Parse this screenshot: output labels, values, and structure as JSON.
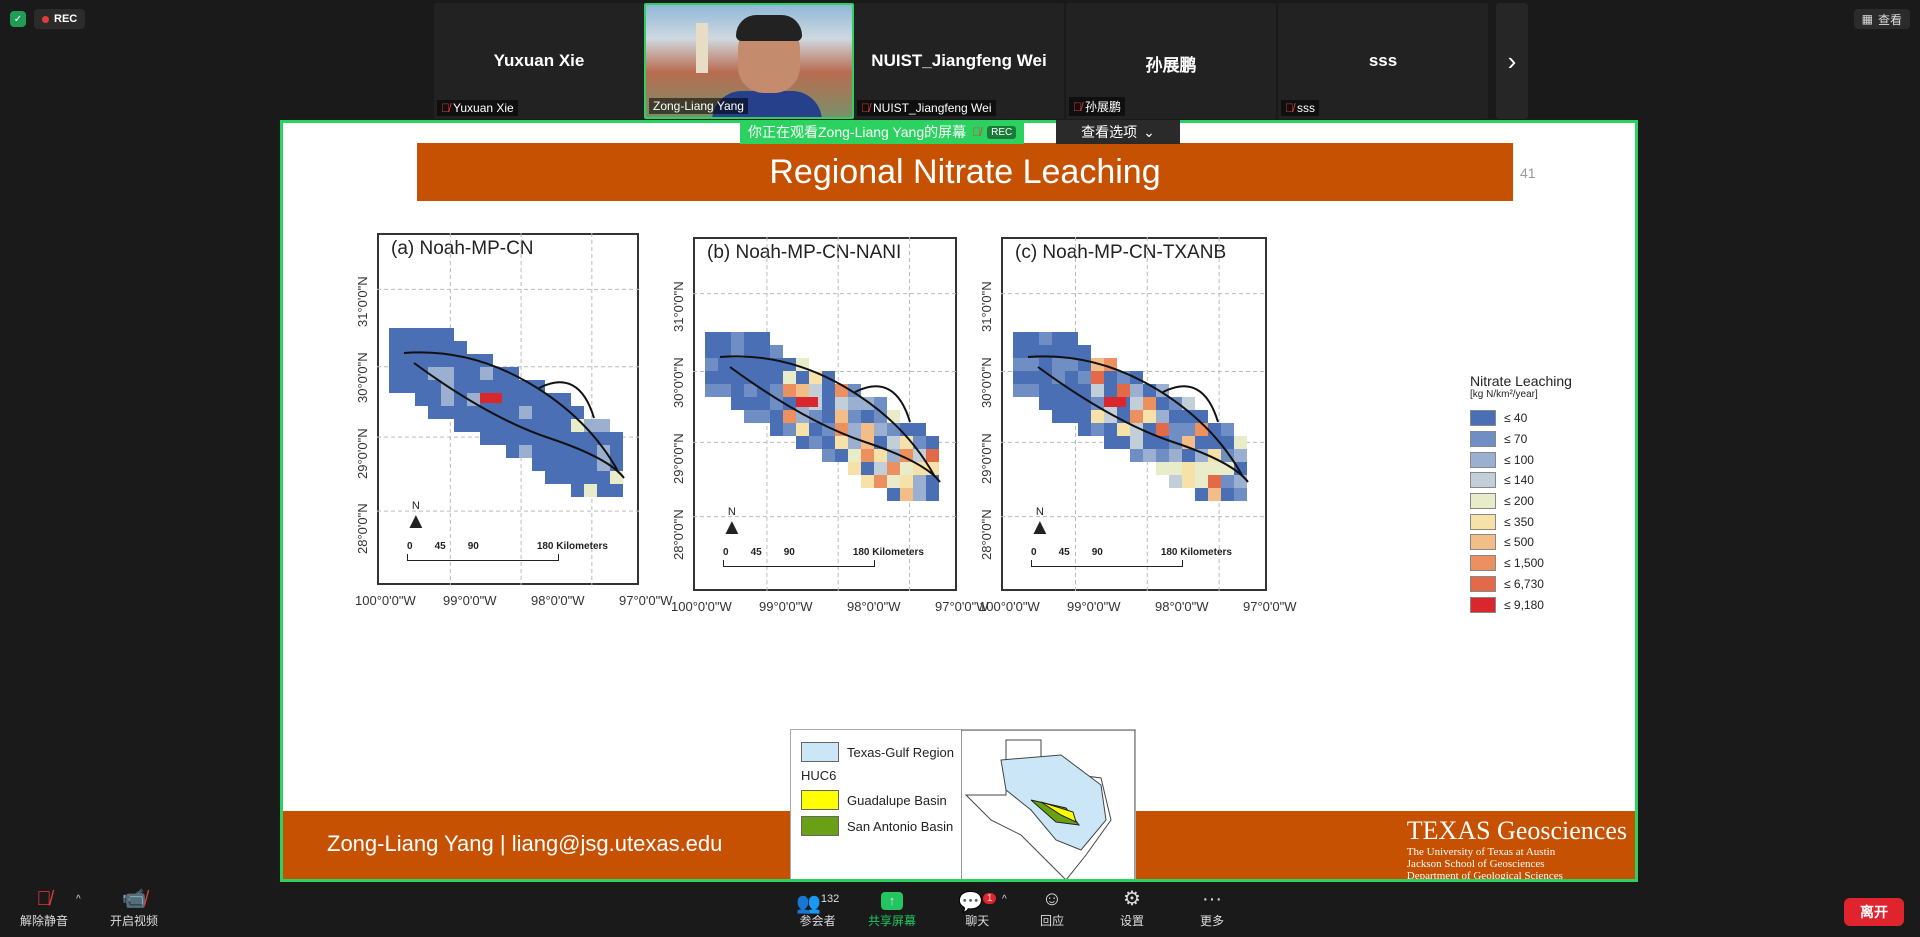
{
  "top": {
    "rec_label": "REC",
    "view_label": "查看",
    "tiles": [
      {
        "name": "Yuxuan Xie",
        "label": "Yuxuan Xie"
      },
      {
        "name": "",
        "label": "Zong-Liang Yang"
      },
      {
        "name": "NUIST_Jiangfeng Wei",
        "label": "NUIST_Jiangfeng Wei"
      },
      {
        "name": "孙展鹏",
        "label": "孙展鹏"
      },
      {
        "name": "sss",
        "label": "sss"
      }
    ]
  },
  "share_banner": {
    "text": "你正在观看Zong-Liang Yang的屏幕",
    "rec": "REC",
    "options": "查看选项"
  },
  "slide": {
    "title": "Regional Nitrate Leaching",
    "page": "41",
    "maps": [
      {
        "title": "(a) Noah-MP-CN"
      },
      {
        "title": "(b) Noah-MP-CN-NANI"
      },
      {
        "title": "(c) Noah-MP-CN-TXANB"
      }
    ],
    "lat_labels": [
      "31°0'0\"N",
      "30°0'0\"N",
      "29°0'0\"N",
      "28°0'0\"N"
    ],
    "lon_labels": [
      "100°0'0\"W",
      "99°0'0\"W",
      "98°0'0\"W",
      "97°0'0\"W"
    ],
    "north": "N",
    "scale_labels": [
      "0",
      "45",
      "90",
      "180 Kilometers"
    ],
    "legend": {
      "title": "Nitrate Leaching",
      "unit": "[kg N/km²/year]",
      "items": [
        {
          "label": "≤ 40",
          "color": "#4a6fb5"
        },
        {
          "label": "≤ 70",
          "color": "#6f8fc4"
        },
        {
          "label": "≤ 100",
          "color": "#9bb0d0"
        },
        {
          "label": "≤ 140",
          "color": "#c2cfd8"
        },
        {
          "label": "≤ 200",
          "color": "#e8ecc8"
        },
        {
          "label": "≤ 350",
          "color": "#f6e2a8"
        },
        {
          "label": "≤ 500",
          "color": "#f3bd88"
        },
        {
          "label": "≤ 1,500",
          "color": "#ec9060"
        },
        {
          "label": "≤ 6,730",
          "color": "#e36a48"
        },
        {
          "label": "≤ 9,180",
          "color": "#d8282e"
        }
      ]
    },
    "inset": {
      "region": "Texas-Gulf Region",
      "huc": "HUC6",
      "guadalupe": "Guadalupe Basin",
      "san_antonio": "San Antonio Basin"
    },
    "footer": {
      "presenter": "Zong-Liang Yang |  liang@jsg.utexas.edu",
      "brand": "TEXAS Geosciences",
      "sub1": "The University of Texas at Austin",
      "sub2": "Jackson School of Geosciences",
      "sub3": "Department of Geological Sciences"
    }
  },
  "bottom": {
    "unmute": "解除静音",
    "video": "开启视频",
    "participants_count": "132",
    "participants": "参会者",
    "share": "共享屏幕",
    "chat_badge": "1",
    "chat": "聊天",
    "react": "回应",
    "settings": "设置",
    "more": "更多",
    "leave": "离开"
  },
  "colors": {
    "accent_green": "#2bd25f",
    "ut_orange": "#c65102",
    "leave_red": "#e0242e"
  }
}
